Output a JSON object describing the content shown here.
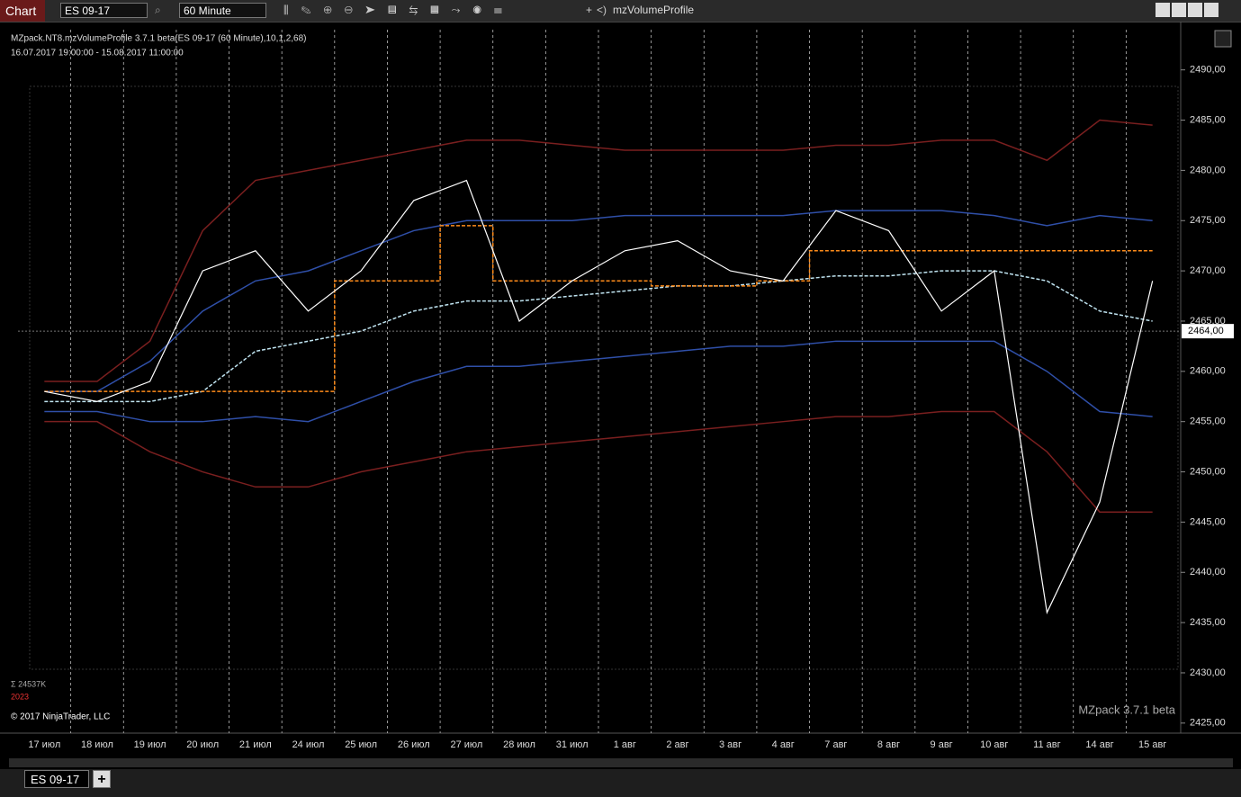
{
  "toolbar": {
    "title": "Chart",
    "instrument": "ES 09-17",
    "interval": "60 Minute",
    "zoom_in": "+",
    "zoom_out": "<)",
    "indicator": "mzVolumeProfile"
  },
  "chart_data": {
    "type": "line",
    "title": "MZpack.NT8.mzVolumeProfile 3.7.1 beta(ES 09-17 (60 Minute),10,1,2,68)",
    "subtitle": "16.07.2017 19:00:00 - 15.08.2017 11:00:00",
    "categories": [
      "17 июл",
      "18 июл",
      "19 июл",
      "20 июл",
      "21 июл",
      "24 июл",
      "25 июл",
      "26 июл",
      "27 июл",
      "28 июл",
      "31 июл",
      "1 авг",
      "2 авг",
      "3 авг",
      "4 авг",
      "7 авг",
      "8 авг",
      "9 авг",
      "10 авг",
      "11 авг",
      "14 авг",
      "15 авг"
    ],
    "series": [
      {
        "color": "#7a1f1f",
        "values": [
          2459,
          2459,
          2463,
          2474,
          2479,
          2480,
          2481,
          2482,
          2483,
          2483,
          2482.5,
          2482,
          2482,
          2482,
          2482,
          2482.5,
          2482.5,
          2483,
          2483,
          2481,
          2485,
          2484.5
        ]
      },
      {
        "color": "#7a1f1f",
        "values": [
          2455,
          2455,
          2452,
          2450,
          2448.5,
          2448.5,
          2450,
          2451,
          2452,
          2452.5,
          2453,
          2453.5,
          2454,
          2454.5,
          2455,
          2455.5,
          2455.5,
          2456,
          2456,
          2452,
          2446,
          2446
        ]
      },
      {
        "color": "#2f4fa8",
        "values": [
          2458,
          2458,
          2461,
          2466,
          2469,
          2470,
          2472,
          2474,
          2475,
          2475,
          2475,
          2475.5,
          2475.5,
          2475.5,
          2475.5,
          2476,
          2476,
          2476,
          2475.5,
          2474.5,
          2475.5,
          2475
        ]
      },
      {
        "color": "#2f4fa8",
        "values": [
          2456,
          2456,
          2455,
          2455,
          2455.5,
          2455,
          2457,
          2459,
          2460.5,
          2460.5,
          2461,
          2461.5,
          2462,
          2462.5,
          2462.5,
          2463,
          2463,
          2463,
          2463,
          2460,
          2456,
          2455.5
        ]
      },
      {
        "color": "#bfe3f0",
        "dashed": true,
        "values": [
          2457,
          2457,
          2457,
          2458,
          2462,
          2463,
          2464,
          2466,
          2467,
          2467,
          2467.5,
          2468,
          2468.5,
          2468.5,
          2469,
          2469.5,
          2469.5,
          2470,
          2470,
          2469,
          2466,
          2465
        ]
      },
      {
        "color": "#ff8c1a",
        "dashed": true,
        "step": true,
        "values": [
          2458,
          2458,
          2458,
          2458,
          2458,
          2458,
          2469,
          2469,
          2474.5,
          2469,
          2469,
          2469,
          2468.5,
          2468.5,
          2469,
          2472,
          2472,
          2472,
          2472,
          2472,
          2472,
          2472
        ]
      },
      {
        "color": "#ffffff",
        "values": [
          2458,
          2457,
          2459,
          2470,
          2472,
          2466,
          2470,
          2477,
          2479,
          2465,
          2469,
          2472,
          2473,
          2470,
          2469,
          2476,
          2474,
          2466,
          2470,
          2436,
          2447,
          2469
        ]
      }
    ],
    "ylim": [
      2424,
      2494
    ],
    "yticks": [
      {
        "value": 2425,
        "label": "2425,00"
      },
      {
        "value": 2430,
        "label": "2430,00"
      },
      {
        "value": 2435,
        "label": "2435,00"
      },
      {
        "value": 2440,
        "label": "2440,00"
      },
      {
        "value": 2445,
        "label": "2445,00"
      },
      {
        "value": 2450,
        "label": "2450,00"
      },
      {
        "value": 2455,
        "label": "2455,00"
      },
      {
        "value": 2460,
        "label": "2460,00"
      },
      {
        "value": 2465,
        "label": "2465,00"
      },
      {
        "value": 2470,
        "label": "2470,00"
      },
      {
        "value": 2475,
        "label": "2475,00"
      },
      {
        "value": 2480,
        "label": "2480,00"
      },
      {
        "value": 2485,
        "label": "2485,00"
      },
      {
        "value": 2490,
        "label": "2490,00"
      }
    ],
    "last_price": {
      "value": 2464,
      "label": "2464,00"
    },
    "volume_sum": "Σ 24537K",
    "bar_count": "2023",
    "copyright": "© 2017 NinjaTrader, LLC",
    "watermark": "MZpack 3.7.1 beta",
    "grid": true
  },
  "tabs": {
    "active": "ES 09-17",
    "add": "+"
  }
}
